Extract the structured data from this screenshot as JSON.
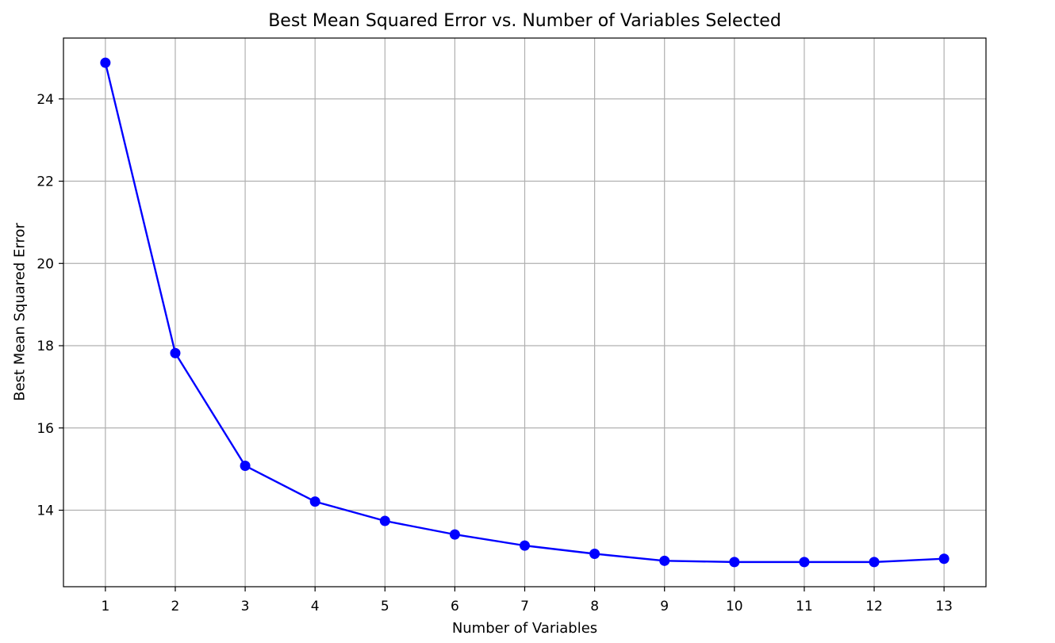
{
  "chart_data": {
    "type": "line",
    "title": "Best Mean Squared Error vs. Number of Variables Selected",
    "xlabel": "Number of Variables",
    "ylabel": "Best Mean Squared Error",
    "x": [
      1,
      2,
      3,
      4,
      5,
      6,
      7,
      8,
      9,
      10,
      11,
      12,
      13
    ],
    "series": [
      {
        "values": [
          24.88,
          17.82,
          15.08,
          14.21,
          13.74,
          13.41,
          13.14,
          12.94,
          12.77,
          12.74,
          12.74,
          12.74,
          12.82
        ],
        "color": "#0000ff",
        "marker": "circle"
      }
    ],
    "xticks": [
      "1",
      "2",
      "3",
      "4",
      "5",
      "6",
      "7",
      "8",
      "9",
      "10",
      "11",
      "12",
      "13"
    ],
    "yticks": [
      14,
      16,
      18,
      20,
      22,
      24
    ],
    "xlim": [
      0.4,
      13.6
    ],
    "ylim": [
      12.14,
      25.48
    ],
    "grid": true,
    "legend": "none"
  }
}
